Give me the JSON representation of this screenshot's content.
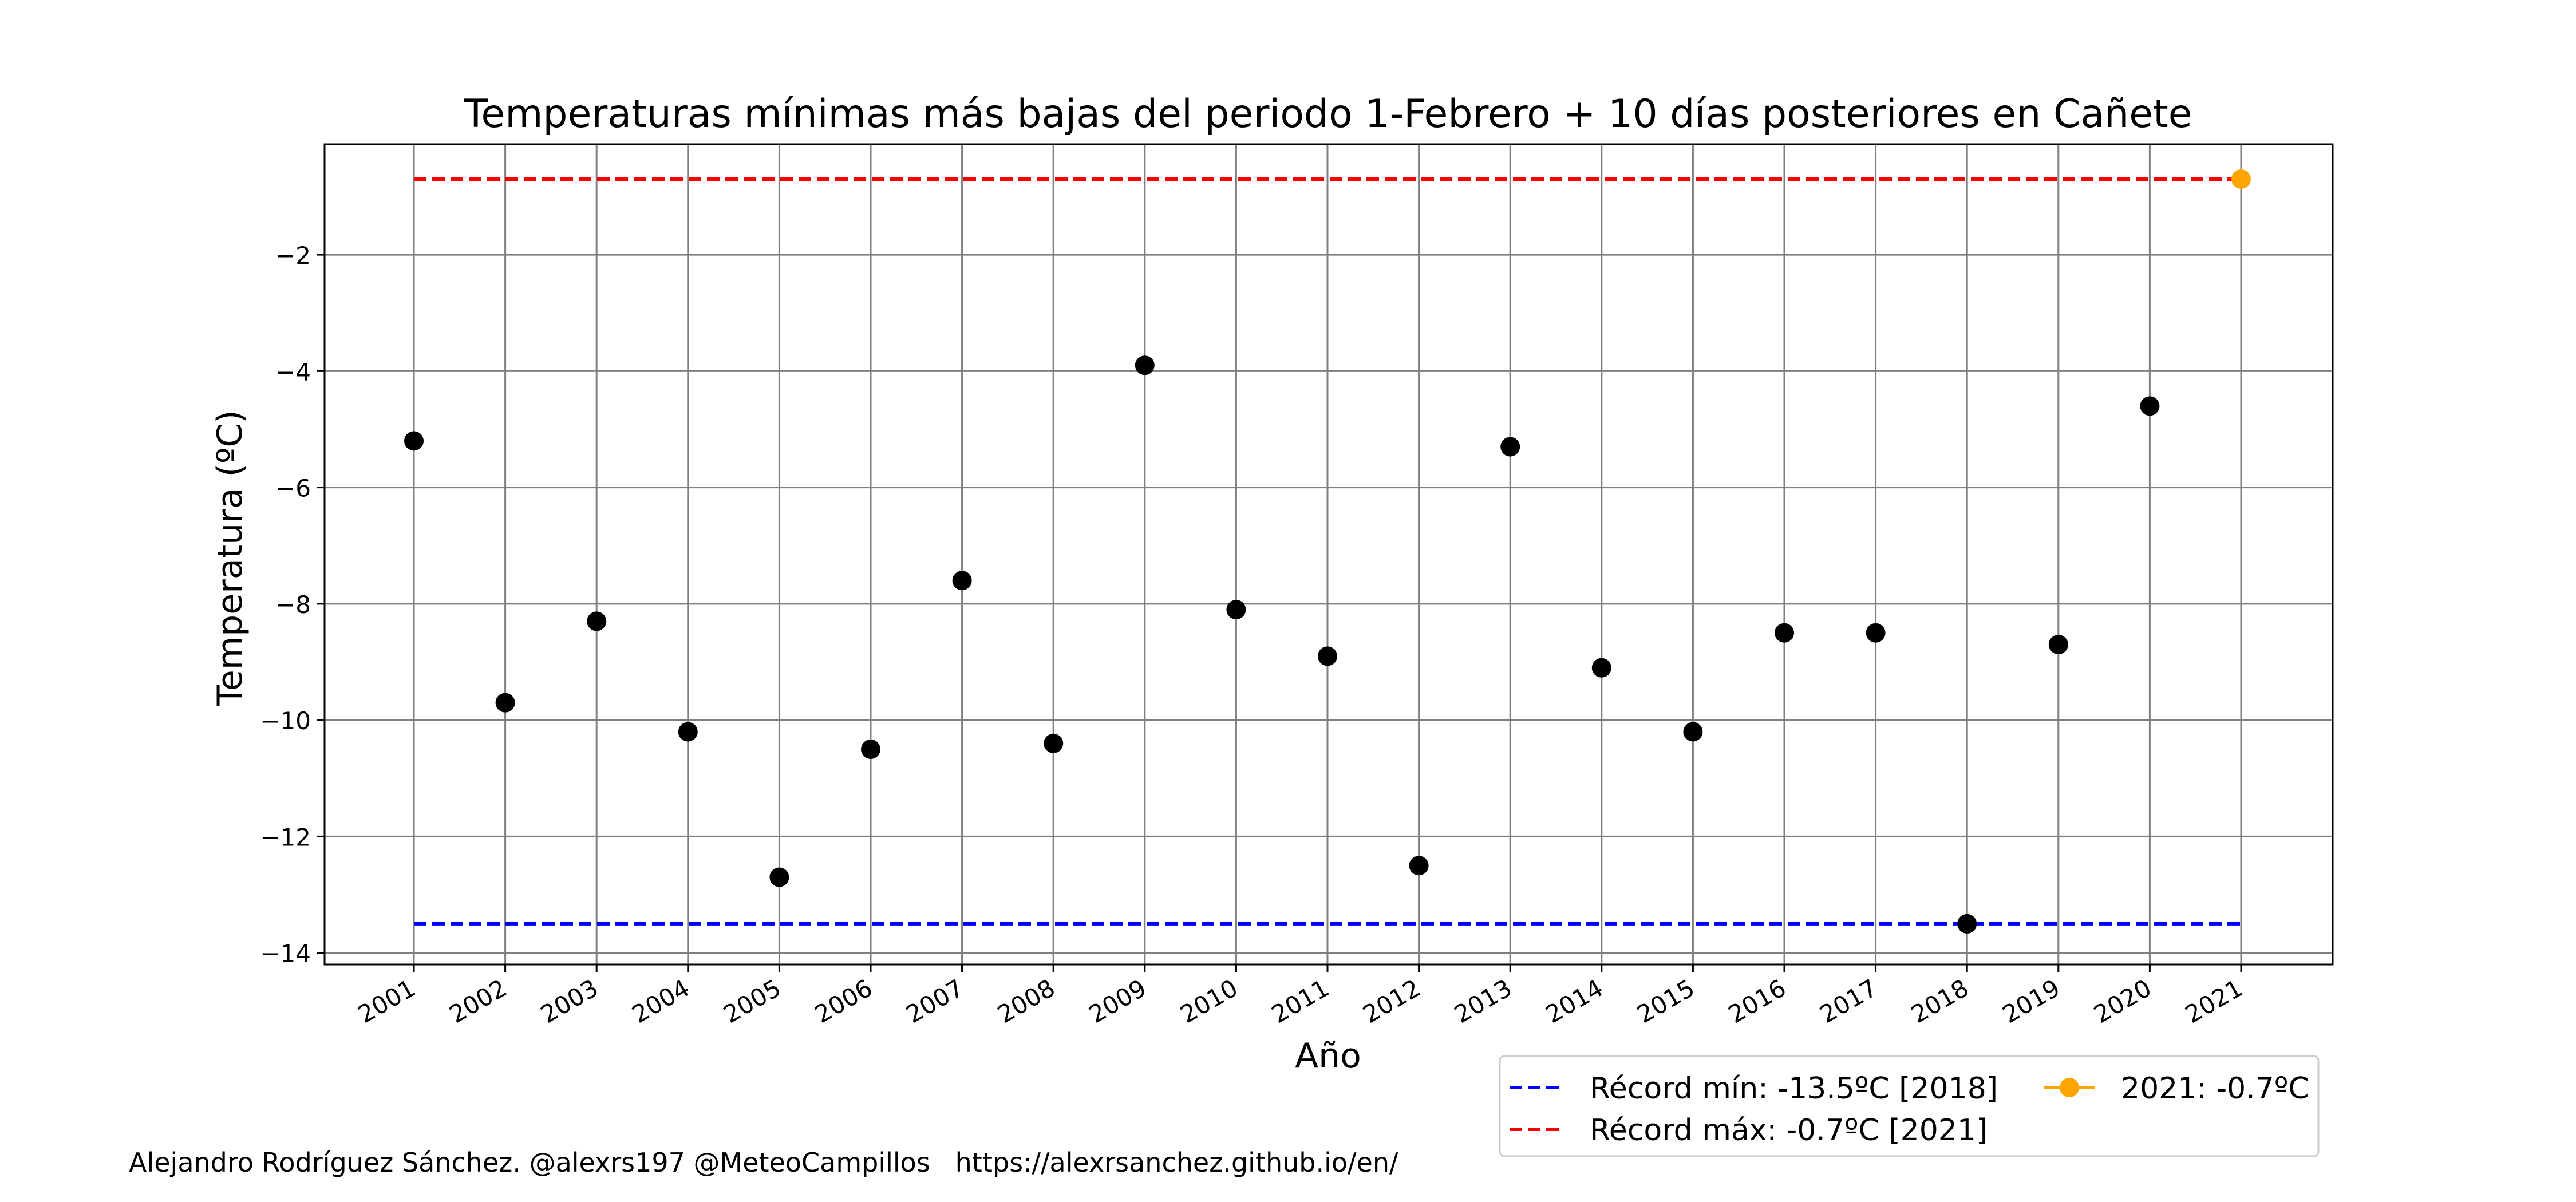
{
  "chart_data": {
    "type": "scatter",
    "title": "Temperaturas mínimas más bajas del periodo 1-Febrero + 10 días posteriores en Cañete",
    "xlabel": "Año",
    "ylabel": "Temperatura (ºC)",
    "ylim": [
      -14.2,
      -0.1
    ],
    "yticks": [
      -2,
      -4,
      -6,
      -8,
      -10,
      -12,
      -14
    ],
    "ytick_labels": [
      "−2",
      "−4",
      "−6",
      "−8",
      "−10",
      "−12",
      "−14"
    ],
    "grid": true,
    "legend_position": "lower-right, below axes",
    "x": [
      "2001",
      "2002",
      "2003",
      "2004",
      "2005",
      "2006",
      "2007",
      "2008",
      "2009",
      "2010",
      "2011",
      "2012",
      "2013",
      "2014",
      "2015",
      "2016",
      "2017",
      "2018",
      "2019",
      "2020",
      "2021"
    ],
    "series": [
      {
        "values": [
          -5.2,
          -9.7,
          -8.3,
          -10.2,
          -12.7,
          -10.5,
          -7.6,
          -10.4,
          -3.9,
          -8.1,
          -8.9,
          -12.5,
          -5.3,
          -9.1,
          -10.2,
          -8.5,
          -8.5,
          -13.5,
          -8.7,
          -4.6,
          null
        ],
        "color": "#000000"
      },
      {
        "name": "2021: -0.7ºC",
        "values": [
          null,
          null,
          null,
          null,
          null,
          null,
          null,
          null,
          null,
          null,
          null,
          null,
          null,
          null,
          null,
          null,
          null,
          null,
          null,
          null,
          -0.7
        ],
        "color": "#ffa500"
      }
    ],
    "reference_lines": [
      {
        "name": "Récord mín: -13.5ºC [2018]",
        "value": -13.5,
        "color": "#0000ff",
        "style": "dashed"
      },
      {
        "name": "Récord máx: -0.7ºC [2021]",
        "value": -0.7,
        "color": "#ff0000",
        "style": "dashed"
      }
    ]
  },
  "footer": {
    "credit": "Alejandro Rodríguez Sánchez. @alexrs197 @MeteoCampillos   https://alexrsanchez.github.io/en/"
  }
}
